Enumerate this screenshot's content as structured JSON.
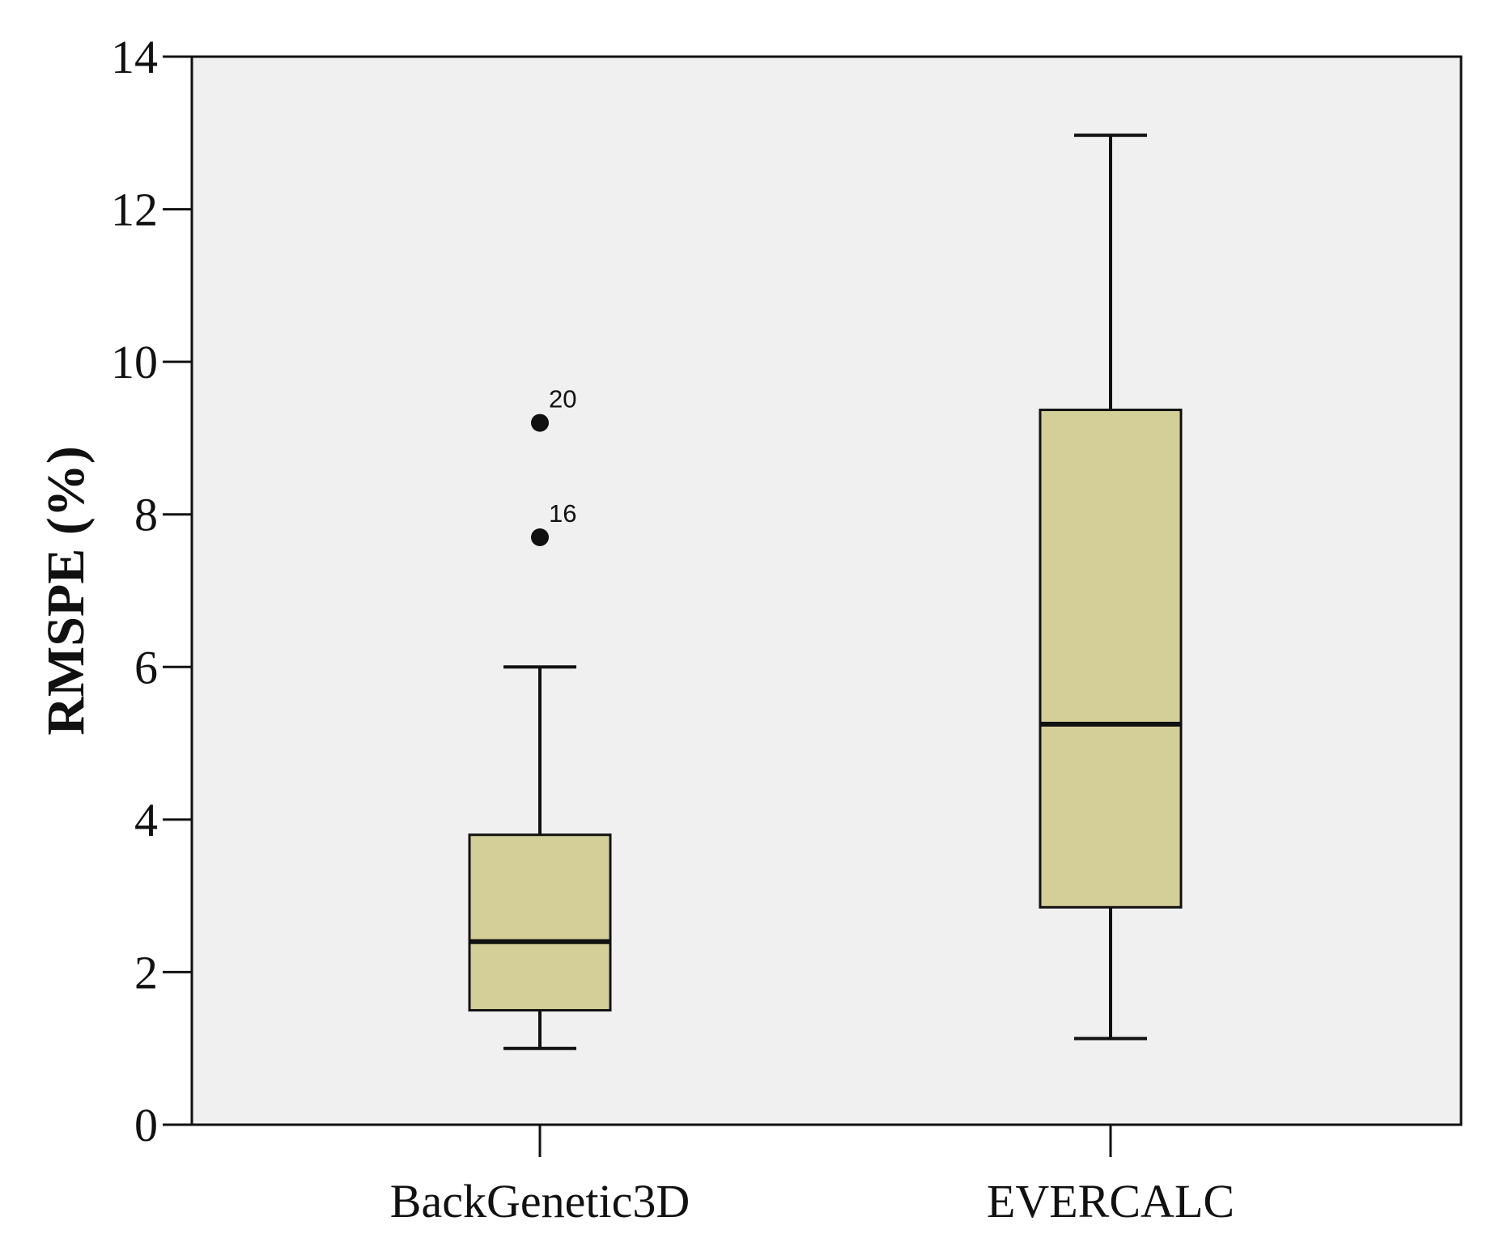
{
  "chart_data": {
    "type": "box",
    "title": "",
    "xlabel": "",
    "ylabel": "RMSPE (%)",
    "ylim": [
      0,
      14
    ],
    "yticks": [
      0,
      2,
      4,
      6,
      8,
      10,
      12,
      14
    ],
    "grid": false,
    "categories": [
      "BackGenetic3D",
      "EVERCALC"
    ],
    "boxes": [
      {
        "name": "BackGenetic3D",
        "whisker_low": 1.0,
        "q1": 1.5,
        "median": 2.4,
        "q3": 3.8,
        "whisker_high": 6.0,
        "outliers": [
          {
            "id": "16",
            "value": 7.7
          },
          {
            "id": "20",
            "value": 9.2
          }
        ]
      },
      {
        "name": "EVERCALC",
        "whisker_low": 1.13,
        "q1": 2.85,
        "median": 5.25,
        "q3": 9.37,
        "whisker_high": 12.97,
        "outliers": []
      }
    ],
    "colors": {
      "plot_background": "#f0f0f0",
      "box_fill": "#d4ce98",
      "line": "#111111"
    }
  }
}
